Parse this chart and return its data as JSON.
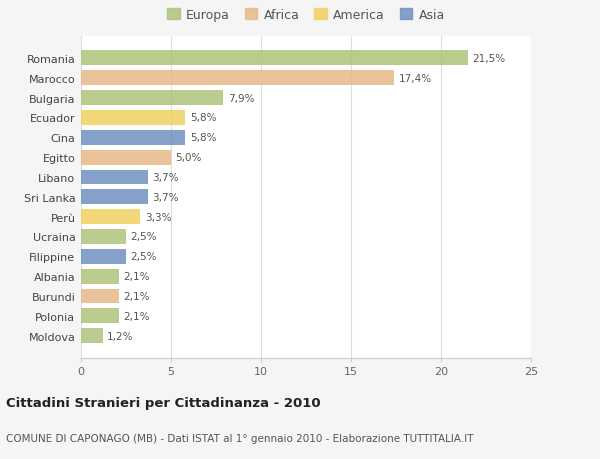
{
  "categories": [
    "Romania",
    "Marocco",
    "Bulgaria",
    "Ecuador",
    "Cina",
    "Egitto",
    "Libano",
    "Sri Lanka",
    "Perù",
    "Ucraina",
    "Filippine",
    "Albania",
    "Burundi",
    "Polonia",
    "Moldova"
  ],
  "values": [
    21.5,
    17.4,
    7.9,
    5.8,
    5.8,
    5.0,
    3.7,
    3.7,
    3.3,
    2.5,
    2.5,
    2.1,
    2.1,
    2.1,
    1.2
  ],
  "labels": [
    "21,5%",
    "17,4%",
    "7,9%",
    "5,8%",
    "5,8%",
    "5,0%",
    "3,7%",
    "3,7%",
    "3,3%",
    "2,5%",
    "2,5%",
    "2,1%",
    "2,1%",
    "2,1%",
    "1,2%"
  ],
  "continents": [
    "Europa",
    "Africa",
    "Europa",
    "America",
    "Asia",
    "Africa",
    "Asia",
    "Asia",
    "America",
    "Europa",
    "Asia",
    "Europa",
    "Africa",
    "Europa",
    "Europa"
  ],
  "colors": {
    "Europa": "#adc47a",
    "Africa": "#e8b98a",
    "America": "#f0d060",
    "Asia": "#7090c0"
  },
  "title": "Cittadini Stranieri per Cittadinanza - 2010",
  "subtitle": "COMUNE DI CAPONAGO (MB) - Dati ISTAT al 1° gennaio 2010 - Elaborazione TUTTITALIA.IT",
  "xlim": [
    0,
    25
  ],
  "background_color": "#f5f5f5",
  "bar_background": "#ffffff"
}
